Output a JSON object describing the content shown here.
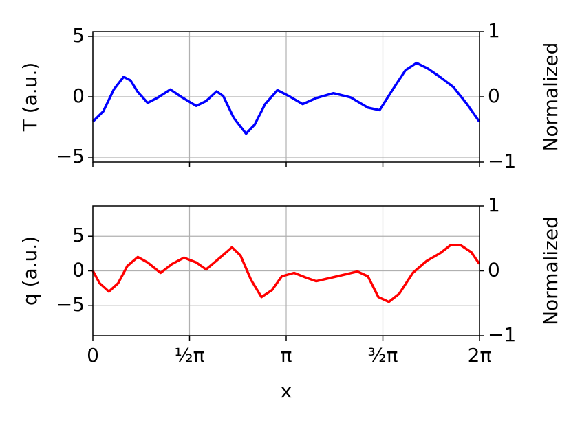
{
  "chart_data": [
    {
      "type": "line",
      "ylabel": "T (a.u.)",
      "y2label": "Normalized",
      "color": "#0000ff",
      "x": [
        0,
        0.17,
        0.34,
        0.5,
        0.61,
        0.73,
        0.89,
        1.06,
        1.26,
        1.45,
        1.68,
        1.84,
        2.01,
        2.12,
        2.29,
        2.49,
        2.63,
        2.8,
        3.0,
        3.19,
        3.41,
        3.63,
        3.91,
        4.19,
        4.47,
        4.66,
        4.86,
        5.08,
        5.26,
        5.44,
        5.64,
        5.86,
        6.08,
        6.28
      ],
      "values": [
        -2.05,
        -1.2,
        0.6,
        1.65,
        1.36,
        0.4,
        -0.5,
        -0.05,
        0.6,
        -0.05,
        -0.75,
        -0.35,
        0.45,
        0.05,
        -1.75,
        -3.05,
        -2.3,
        -0.6,
        0.55,
        0.05,
        -0.6,
        -0.1,
        0.3,
        -0.05,
        -0.9,
        -1.1,
        0.5,
        2.2,
        2.8,
        2.35,
        1.65,
        0.8,
        -0.6,
        -2.05
      ],
      "xlim": [
        0,
        6.2832
      ],
      "xticks": [
        0,
        1.5708,
        3.1416,
        4.7124,
        6.2832
      ],
      "ylim": [
        -5.4,
        5.4
      ],
      "yticks": [
        {
          "value": -5,
          "label": "−5"
        },
        0,
        5
      ],
      "y2lim": [
        -1,
        1
      ],
      "y2ticks": [
        {
          "value": -1,
          "label": "−1"
        },
        0,
        1
      ],
      "grid": true
    },
    {
      "type": "line",
      "ylabel": "q (a.u.)",
      "y2label": "Normalized",
      "xlabel": "x",
      "color": "#ff0000",
      "x": [
        0,
        0.11,
        0.26,
        0.41,
        0.56,
        0.73,
        0.89,
        1.1,
        1.29,
        1.48,
        1.68,
        1.84,
        2.04,
        2.26,
        2.4,
        2.57,
        2.74,
        2.91,
        3.07,
        3.27,
        3.47,
        3.63,
        3.97,
        4.3,
        4.47,
        4.64,
        4.81,
        4.98,
        5.2,
        5.42,
        5.65,
        5.81,
        5.98,
        6.15,
        6.28
      ],
      "values": [
        0,
        -1.8,
        -3.0,
        -1.8,
        0.7,
        2.0,
        1.2,
        -0.3,
        1.0,
        1.9,
        1.2,
        0.2,
        1.7,
        3.4,
        2.2,
        -1.3,
        -3.8,
        -2.8,
        -0.8,
        -0.3,
        -1.0,
        -1.5,
        -0.8,
        -0.1,
        -0.8,
        -3.8,
        -4.5,
        -3.3,
        -0.3,
        1.4,
        2.6,
        3.7,
        3.7,
        2.7,
        1.0
      ],
      "xlim": [
        0,
        6.2832
      ],
      "xticks": [
        0,
        {
          "value": 1.5708,
          "label": "½π"
        },
        {
          "value": 3.1416,
          "label": "π"
        },
        {
          "value": 4.7124,
          "label": "³⁄₂π"
        },
        {
          "value": 6.2832,
          "label": "2π"
        }
      ],
      "ylim": [
        -9.4,
        9.4
      ],
      "yticks": [
        {
          "value": -5,
          "label": "−5"
        },
        0,
        5
      ],
      "y2lim": [
        -1,
        1
      ],
      "y2ticks": [
        {
          "value": -1,
          "label": "−1"
        },
        0,
        1
      ],
      "grid": true
    }
  ]
}
